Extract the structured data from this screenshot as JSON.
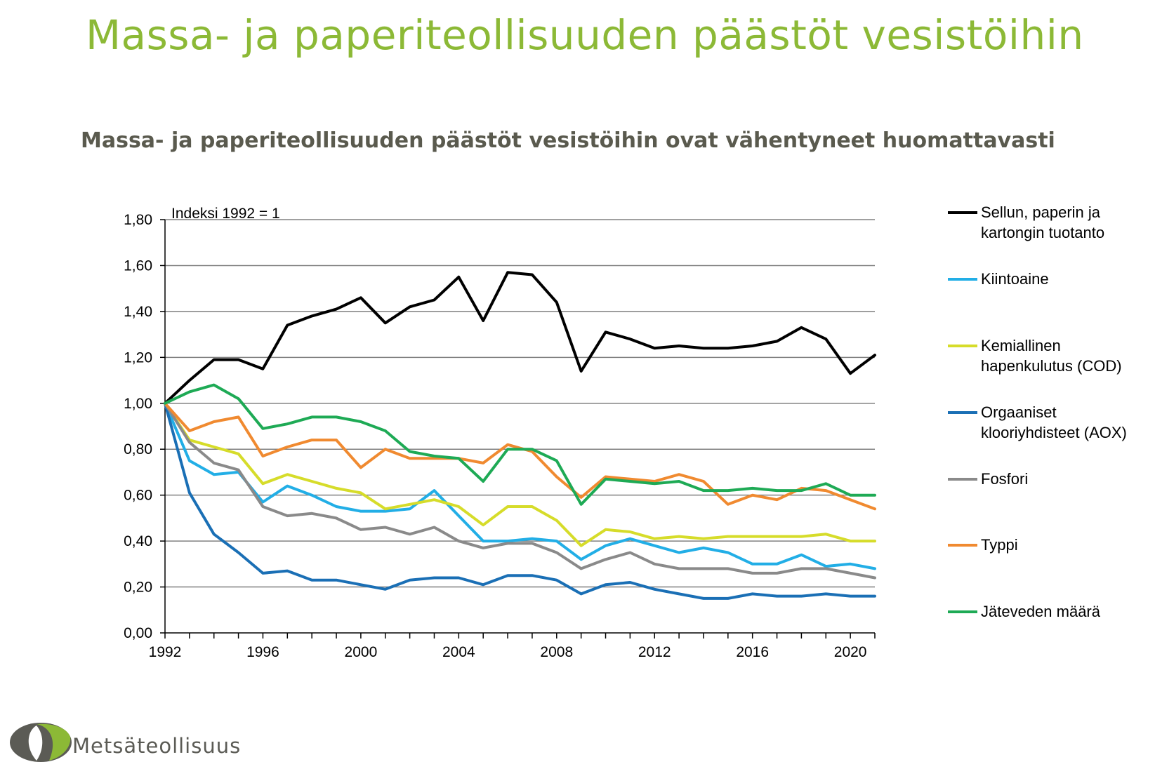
{
  "page": {
    "title": "Massa- ja paperiteollisuuden päästöt vesistöihin",
    "subtitle": "Massa- ja paperiteollisuuden päästöt vesistöihin ovat vähentyneet huomattavasti",
    "logo_text": "Metsäteollisuus"
  },
  "colors": {
    "title": "#8cb936",
    "subtitle": "#5a5a4e",
    "grid": "#808080"
  },
  "chart_data": {
    "type": "line",
    "title": "",
    "xlabel": "",
    "ylabel": "",
    "annotation": "Indeksi 1992 = 1",
    "xlim": [
      1992,
      2021
    ],
    "ylim": [
      0,
      1.8
    ],
    "ytick_step": 0.2,
    "yticks": [
      "0,00",
      "0,20",
      "0,40",
      "0,60",
      "0,80",
      "1,00",
      "1,20",
      "1,40",
      "1,60",
      "1,80"
    ],
    "xtick_labels": [
      1992,
      1996,
      2000,
      2004,
      2008,
      2012,
      2016,
      2020
    ],
    "grid": true,
    "legend_position": "right",
    "x": [
      1992,
      1993,
      1994,
      1995,
      1996,
      1997,
      1998,
      1999,
      2000,
      2001,
      2002,
      2003,
      2004,
      2005,
      2006,
      2007,
      2008,
      2009,
      2010,
      2011,
      2012,
      2013,
      2014,
      2015,
      2016,
      2017,
      2018,
      2019,
      2020,
      2021
    ],
    "series": [
      {
        "name": "Sellun, paperin ja kartongin tuotanto",
        "legend_lines": [
          "Sellun, paperin ja",
          "kartongin tuotanto"
        ],
        "color": "#000000",
        "values": [
          1.0,
          1.1,
          1.19,
          1.19,
          1.15,
          1.34,
          1.38,
          1.41,
          1.46,
          1.35,
          1.42,
          1.45,
          1.55,
          1.36,
          1.57,
          1.56,
          1.44,
          1.14,
          1.31,
          1.28,
          1.24,
          1.25,
          1.24,
          1.24,
          1.25,
          1.27,
          1.33,
          1.28,
          1.13,
          1.21
        ]
      },
      {
        "name": "Kiintoaine",
        "legend_lines": [
          "Kiintoaine"
        ],
        "color": "#22aee6",
        "values": [
          1.0,
          0.75,
          0.69,
          0.7,
          0.57,
          0.64,
          0.6,
          0.55,
          0.53,
          0.53,
          0.54,
          0.62,
          0.51,
          0.4,
          0.4,
          0.41,
          0.4,
          0.32,
          0.38,
          0.41,
          0.38,
          0.35,
          0.37,
          0.35,
          0.3,
          0.3,
          0.34,
          0.29,
          0.3,
          0.28
        ]
      },
      {
        "name": "Kemiallinen hapenkulutus (COD)",
        "legend_lines": [
          "Kemiallinen",
          "hapenkulutus (COD)"
        ],
        "color": "#d6dc2a",
        "values": [
          1.0,
          0.84,
          0.81,
          0.78,
          0.65,
          0.69,
          0.66,
          0.63,
          0.61,
          0.54,
          0.56,
          0.58,
          0.55,
          0.47,
          0.55,
          0.55,
          0.49,
          0.38,
          0.45,
          0.44,
          0.41,
          0.42,
          0.41,
          0.42,
          0.42,
          0.42,
          0.42,
          0.43,
          0.4,
          0.4
        ]
      },
      {
        "name": "Orgaaniset klooriyhdisteet (AOX)",
        "legend_lines": [
          "Orgaaniset",
          "klooriyhdisteet (AOX)"
        ],
        "color": "#1a6fb5",
        "values": [
          1.0,
          0.61,
          0.43,
          0.35,
          0.26,
          0.27,
          0.23,
          0.23,
          0.21,
          0.19,
          0.23,
          0.24,
          0.24,
          0.21,
          0.25,
          0.25,
          0.23,
          0.17,
          0.21,
          0.22,
          0.19,
          0.17,
          0.15,
          0.15,
          0.17,
          0.16,
          0.16,
          0.17,
          0.16,
          0.16
        ]
      },
      {
        "name": "Fosfori",
        "legend_lines": [
          "Fosfori"
        ],
        "color": "#8a8a8a",
        "values": [
          1.0,
          0.83,
          0.74,
          0.71,
          0.55,
          0.51,
          0.52,
          0.5,
          0.45,
          0.46,
          0.43,
          0.46,
          0.4,
          0.37,
          0.39,
          0.39,
          0.35,
          0.28,
          0.32,
          0.35,
          0.3,
          0.28,
          0.28,
          0.28,
          0.26,
          0.26,
          0.28,
          0.28,
          0.26,
          0.24
        ]
      },
      {
        "name": "Typpi",
        "legend_lines": [
          "Typpi"
        ],
        "color": "#f08a30",
        "values": [
          1.0,
          0.88,
          0.92,
          0.94,
          0.77,
          0.81,
          0.84,
          0.84,
          0.72,
          0.8,
          0.76,
          0.76,
          0.76,
          0.74,
          0.82,
          0.79,
          0.68,
          0.59,
          0.68,
          0.67,
          0.66,
          0.69,
          0.66,
          0.56,
          0.6,
          0.58,
          0.63,
          0.62,
          0.58,
          0.54
        ]
      },
      {
        "name": "Jäteveden määrä",
        "legend_lines": [
          "Jäteveden määrä"
        ],
        "color": "#1eaa55",
        "values": [
          1.0,
          1.05,
          1.08,
          1.02,
          0.89,
          0.91,
          0.94,
          0.94,
          0.92,
          0.88,
          0.79,
          0.77,
          0.76,
          0.66,
          0.8,
          0.8,
          0.75,
          0.56,
          0.67,
          0.66,
          0.65,
          0.66,
          0.62,
          0.62,
          0.63,
          0.62,
          0.62,
          0.65,
          0.6,
          0.6
        ]
      }
    ]
  }
}
